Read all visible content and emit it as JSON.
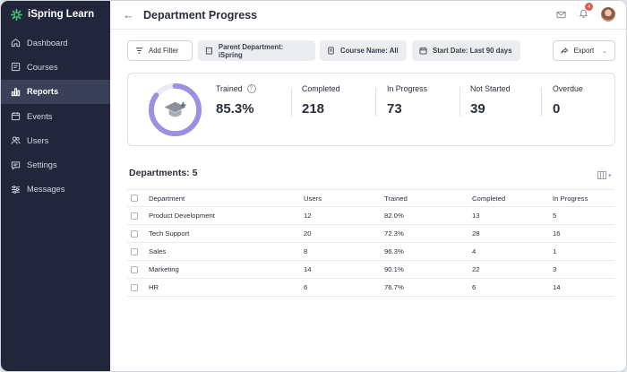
{
  "app": {
    "brand": "iSpring Learn"
  },
  "sidebar": {
    "items": [
      {
        "label": "Dashboard",
        "icon": "home-icon"
      },
      {
        "label": "Courses",
        "icon": "courses-icon"
      },
      {
        "label": "Reports",
        "icon": "bar-chart-icon",
        "active": true
      },
      {
        "label": "Events",
        "icon": "calendar-icon"
      },
      {
        "label": "Users",
        "icon": "users-icon"
      },
      {
        "label": "Settings",
        "icon": "settings-icon"
      },
      {
        "label": "Messages",
        "icon": "sliders-icon"
      }
    ]
  },
  "header": {
    "title": "Department Progress",
    "notification_count": "4"
  },
  "filters": {
    "add_filter": "Add Filter",
    "parent_department": "Parent Department: iSpring",
    "course_name": "Course Name: All",
    "start_date": "Start Date: Last 90 days",
    "export": "Export"
  },
  "stats": {
    "trained_label": "Trained",
    "trained_value": "85.3%",
    "trained_fraction": 0.853,
    "completed_label": "Completed",
    "completed_value": "218",
    "in_progress_label": "In Progress",
    "in_progress_value": "73",
    "not_started_label": "Not Started",
    "not_started_value": "39",
    "overdue_label": "Overdue",
    "overdue_value": "0"
  },
  "departments": {
    "title": "Departments: 5",
    "columns": [
      "Department",
      "Users",
      "Trained",
      "Completed",
      "In Progress"
    ],
    "rows": [
      [
        "Product Development",
        "12",
        "82.0%",
        "13",
        "5"
      ],
      [
        "Tech Support",
        "20",
        "72.3%",
        "28",
        "16"
      ],
      [
        "Sales",
        "8",
        "96.3%",
        "4",
        "1"
      ],
      [
        "Marketing",
        "14",
        "90.1%",
        "22",
        "3"
      ],
      [
        "HR",
        "6",
        "76.7%",
        "6",
        "14"
      ]
    ]
  },
  "colors": {
    "sidebar_bg": "#22263a",
    "sidebar_active": "#3a4058",
    "accent_ring": "#9f8fe0",
    "brand_green": "#3ec46d",
    "badge_red": "#e05a4f"
  }
}
